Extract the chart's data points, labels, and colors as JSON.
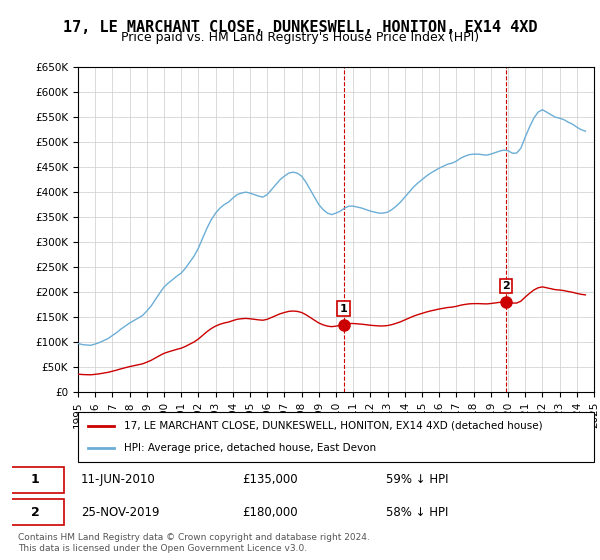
{
  "title": "17, LE MARCHANT CLOSE, DUNKESWELL, HONITON, EX14 4XD",
  "subtitle": "Price paid vs. HM Land Registry's House Price Index (HPI)",
  "hpi_years": [
    1995.0,
    1995.25,
    1995.5,
    1995.75,
    1996.0,
    1996.25,
    1996.5,
    1996.75,
    1997.0,
    1997.25,
    1997.5,
    1997.75,
    1998.0,
    1998.25,
    1998.5,
    1998.75,
    1999.0,
    1999.25,
    1999.5,
    1999.75,
    2000.0,
    2000.25,
    2000.5,
    2000.75,
    2001.0,
    2001.25,
    2001.5,
    2001.75,
    2002.0,
    2002.25,
    2002.5,
    2002.75,
    2003.0,
    2003.25,
    2003.5,
    2003.75,
    2004.0,
    2004.25,
    2004.5,
    2004.75,
    2005.0,
    2005.25,
    2005.5,
    2005.75,
    2006.0,
    2006.25,
    2006.5,
    2006.75,
    2007.0,
    2007.25,
    2007.5,
    2007.75,
    2008.0,
    2008.25,
    2008.5,
    2008.75,
    2009.0,
    2009.25,
    2009.5,
    2009.75,
    2010.0,
    2010.25,
    2010.5,
    2010.75,
    2011.0,
    2011.25,
    2011.5,
    2011.75,
    2012.0,
    2012.25,
    2012.5,
    2012.75,
    2013.0,
    2013.25,
    2013.5,
    2013.75,
    2014.0,
    2014.25,
    2014.5,
    2014.75,
    2015.0,
    2015.25,
    2015.5,
    2015.75,
    2016.0,
    2016.25,
    2016.5,
    2016.75,
    2017.0,
    2017.25,
    2017.5,
    2017.75,
    2018.0,
    2018.25,
    2018.5,
    2018.75,
    2019.0,
    2019.25,
    2019.5,
    2019.75,
    2020.0,
    2020.25,
    2020.5,
    2020.75,
    2021.0,
    2021.25,
    2021.5,
    2021.75,
    2022.0,
    2022.25,
    2022.5,
    2022.75,
    2023.0,
    2023.25,
    2023.5,
    2023.75,
    2024.0,
    2024.25,
    2024.5
  ],
  "hpi_values": [
    97000,
    95000,
    94000,
    93500,
    96000,
    99000,
    103000,
    107000,
    113000,
    119000,
    126000,
    132000,
    138000,
    143000,
    148000,
    153000,
    162000,
    172000,
    185000,
    198000,
    210000,
    218000,
    225000,
    232000,
    238000,
    248000,
    260000,
    272000,
    288000,
    308000,
    328000,
    345000,
    358000,
    368000,
    375000,
    380000,
    388000,
    395000,
    398000,
    400000,
    398000,
    395000,
    392000,
    390000,
    395000,
    405000,
    415000,
    425000,
    432000,
    438000,
    440000,
    438000,
    432000,
    420000,
    405000,
    390000,
    375000,
    365000,
    358000,
    355000,
    358000,
    362000,
    368000,
    372000,
    372000,
    370000,
    368000,
    365000,
    362000,
    360000,
    358000,
    358000,
    360000,
    365000,
    372000,
    380000,
    390000,
    400000,
    410000,
    418000,
    425000,
    432000,
    438000,
    443000,
    448000,
    452000,
    456000,
    458000,
    462000,
    468000,
    472000,
    475000,
    476000,
    476000,
    475000,
    474000,
    476000,
    479000,
    482000,
    484000,
    483000,
    478000,
    478000,
    488000,
    510000,
    530000,
    548000,
    560000,
    565000,
    560000,
    555000,
    550000,
    548000,
    545000,
    540000,
    536000,
    530000,
    525000,
    522000
  ],
  "price_paid_years": [
    2010.44,
    2019.9
  ],
  "price_paid_values": [
    135000,
    180000
  ],
  "transaction1": {
    "date": "11-JUN-2010",
    "price": "£135,000",
    "pct": "59%",
    "dir": "↓",
    "label": "1"
  },
  "transaction2": {
    "date": "25-NOV-2019",
    "price": "£180,000",
    "pct": "58%",
    "dir": "↓",
    "label": "2"
  },
  "hpi_color": "#6baed6",
  "price_color": "#cc0000",
  "marker_color": "#cc0000",
  "marker_face": "#cc0000",
  "bg_color": "#ffffff",
  "grid_color": "#cccccc",
  "ylim": [
    0,
    650000
  ],
  "xlim": [
    1995,
    2025
  ],
  "yticks": [
    0,
    50000,
    100000,
    150000,
    200000,
    250000,
    300000,
    350000,
    400000,
    450000,
    500000,
    550000,
    600000,
    650000
  ],
  "xticks": [
    1995,
    1996,
    1997,
    1998,
    1999,
    2000,
    2001,
    2002,
    2003,
    2004,
    2005,
    2006,
    2007,
    2008,
    2009,
    2010,
    2011,
    2012,
    2013,
    2014,
    2015,
    2016,
    2017,
    2018,
    2019,
    2020,
    2021,
    2022,
    2023,
    2024,
    2025
  ],
  "legend_line1": "17, LE MARCHANT CLOSE, DUNKESWELL, HONITON, EX14 4XD (detached house)",
  "legend_line2": "HPI: Average price, detached house, East Devon",
  "footnote": "Contains HM Land Registry data © Crown copyright and database right 2024.\nThis data is licensed under the Open Government Licence v3.0.",
  "title_fontsize": 11,
  "subtitle_fontsize": 9,
  "tick_fontsize": 7.5,
  "legend_fontsize": 8
}
